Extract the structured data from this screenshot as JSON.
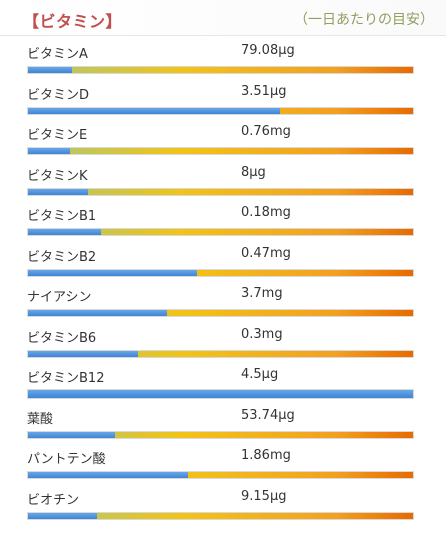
{
  "header": {
    "title": "【ビタミン】",
    "subtitle": "（一日あたりの目安）"
  },
  "colors": {
    "title": "#c0504d",
    "subtitle": "#8fa060",
    "fill": "#3d85d6",
    "track_start": "#a9c878",
    "track_mid": "#f2c318",
    "track_end": "#e86a00"
  },
  "vitamins": [
    {
      "name": "ビタミンA",
      "value": "79.08μg",
      "percent": 11.5
    },
    {
      "name": "ビタミンD",
      "value": "3.51μg",
      "percent": 65.5
    },
    {
      "name": "ビタミンE",
      "value": "0.76mg",
      "percent": 11.0
    },
    {
      "name": "ビタミンK",
      "value": "8μg",
      "percent": 15.5
    },
    {
      "name": "ビタミンB1",
      "value": "0.18mg",
      "percent": 19.0
    },
    {
      "name": "ビタミンB2",
      "value": "0.47mg",
      "percent": 44.0
    },
    {
      "name": "ナイアシン",
      "value": "3.7mg",
      "percent": 36.0
    },
    {
      "name": "ビタミンB6",
      "value": "0.3mg",
      "percent": 28.5
    },
    {
      "name": "ビタミンB12",
      "value": "4.5μg",
      "percent": 100
    },
    {
      "name": "葉酸",
      "value": "53.74μg",
      "percent": 22.5
    },
    {
      "name": "パントテン酸",
      "value": "1.86mg",
      "percent": 41.5
    },
    {
      "name": "ビオチン",
      "value": "9.15μg",
      "percent": 18.0
    }
  ]
}
